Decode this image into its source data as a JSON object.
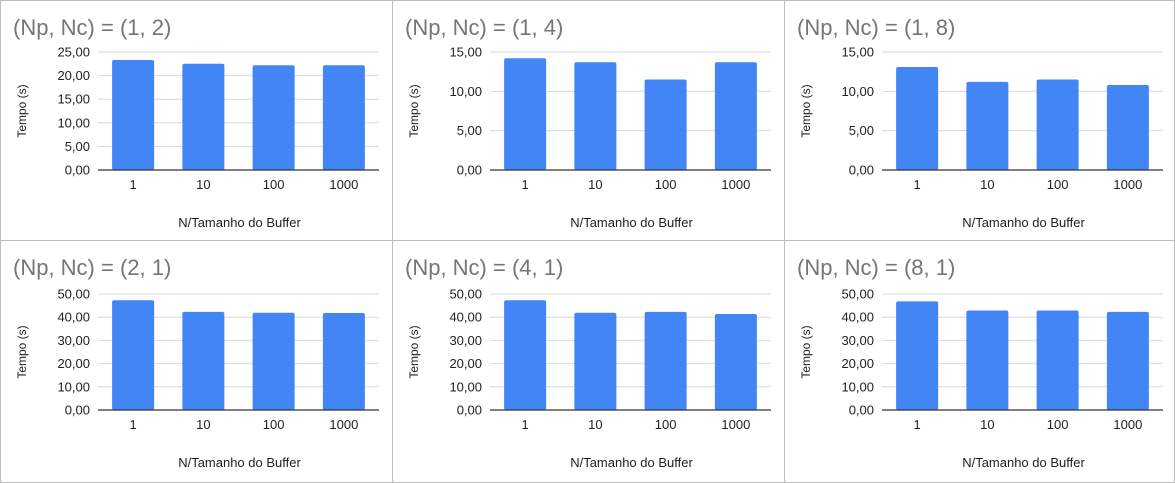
{
  "chart_data": [
    {
      "type": "bar",
      "title": "(Np, Nc) = (1, 2)",
      "xlabel": "N/Tamanho do Buffer",
      "ylabel": "Tempo (s)",
      "categories": [
        "1",
        "10",
        "100",
        "1000"
      ],
      "values": [
        23.3,
        22.5,
        22.2,
        22.2
      ],
      "ylim": [
        0,
        25
      ],
      "yticks": [
        "0,00",
        "5,00",
        "10,00",
        "15,00",
        "20,00",
        "25,00"
      ],
      "grid": true,
      "bar_color": "#4285f4"
    },
    {
      "type": "bar",
      "title": "(Np, Nc) = (1, 4)",
      "xlabel": "N/Tamanho do Buffer",
      "ylabel": "Tempo (s)",
      "categories": [
        "1",
        "10",
        "100",
        "1000"
      ],
      "values": [
        14.2,
        13.7,
        11.5,
        13.7
      ],
      "ylim": [
        0,
        15
      ],
      "yticks": [
        "0,00",
        "5,00",
        "10,00",
        "15,00"
      ],
      "grid": true,
      "bar_color": "#4285f4"
    },
    {
      "type": "bar",
      "title": "(Np, Nc) = (1, 8)",
      "xlabel": "N/Tamanho do Buffer",
      "ylabel": "Tempo (s)",
      "categories": [
        "1",
        "10",
        "100",
        "1000"
      ],
      "values": [
        13.1,
        11.2,
        11.5,
        10.8
      ],
      "ylim": [
        0,
        15
      ],
      "yticks": [
        "0,00",
        "5,00",
        "10,00",
        "15,00"
      ],
      "grid": true,
      "bar_color": "#4285f4"
    },
    {
      "type": "bar",
      "title": "(Np, Nc) = (2, 1)",
      "xlabel": "N/Tamanho do Buffer",
      "ylabel": "Tempo (s)",
      "categories": [
        "1",
        "10",
        "100",
        "1000"
      ],
      "values": [
        47.3,
        42.3,
        41.9,
        41.8
      ],
      "ylim": [
        0,
        50
      ],
      "yticks": [
        "0,00",
        "10,00",
        "20,00",
        "30,00",
        "40,00",
        "50,00"
      ],
      "grid": true,
      "bar_color": "#4285f4"
    },
    {
      "type": "bar",
      "title": "(Np, Nc) = (4, 1)",
      "xlabel": "N/Tamanho do Buffer",
      "ylabel": "Tempo (s)",
      "categories": [
        "1",
        "10",
        "100",
        "1000"
      ],
      "values": [
        47.3,
        41.9,
        42.3,
        41.4
      ],
      "ylim": [
        0,
        50
      ],
      "yticks": [
        "0,00",
        "10,00",
        "20,00",
        "30,00",
        "40,00",
        "50,00"
      ],
      "grid": true,
      "bar_color": "#4285f4"
    },
    {
      "type": "bar",
      "title": "(Np, Nc) = (8, 1)",
      "xlabel": "N/Tamanho do Buffer",
      "ylabel": "Tempo (s)",
      "categories": [
        "1",
        "10",
        "100",
        "1000"
      ],
      "values": [
        46.8,
        42.9,
        42.9,
        42.3
      ],
      "ylim": [
        0,
        50
      ],
      "yticks": [
        "0,00",
        "10,00",
        "20,00",
        "30,00",
        "40,00",
        "50,00"
      ],
      "grid": true,
      "bar_color": "#4285f4"
    }
  ]
}
